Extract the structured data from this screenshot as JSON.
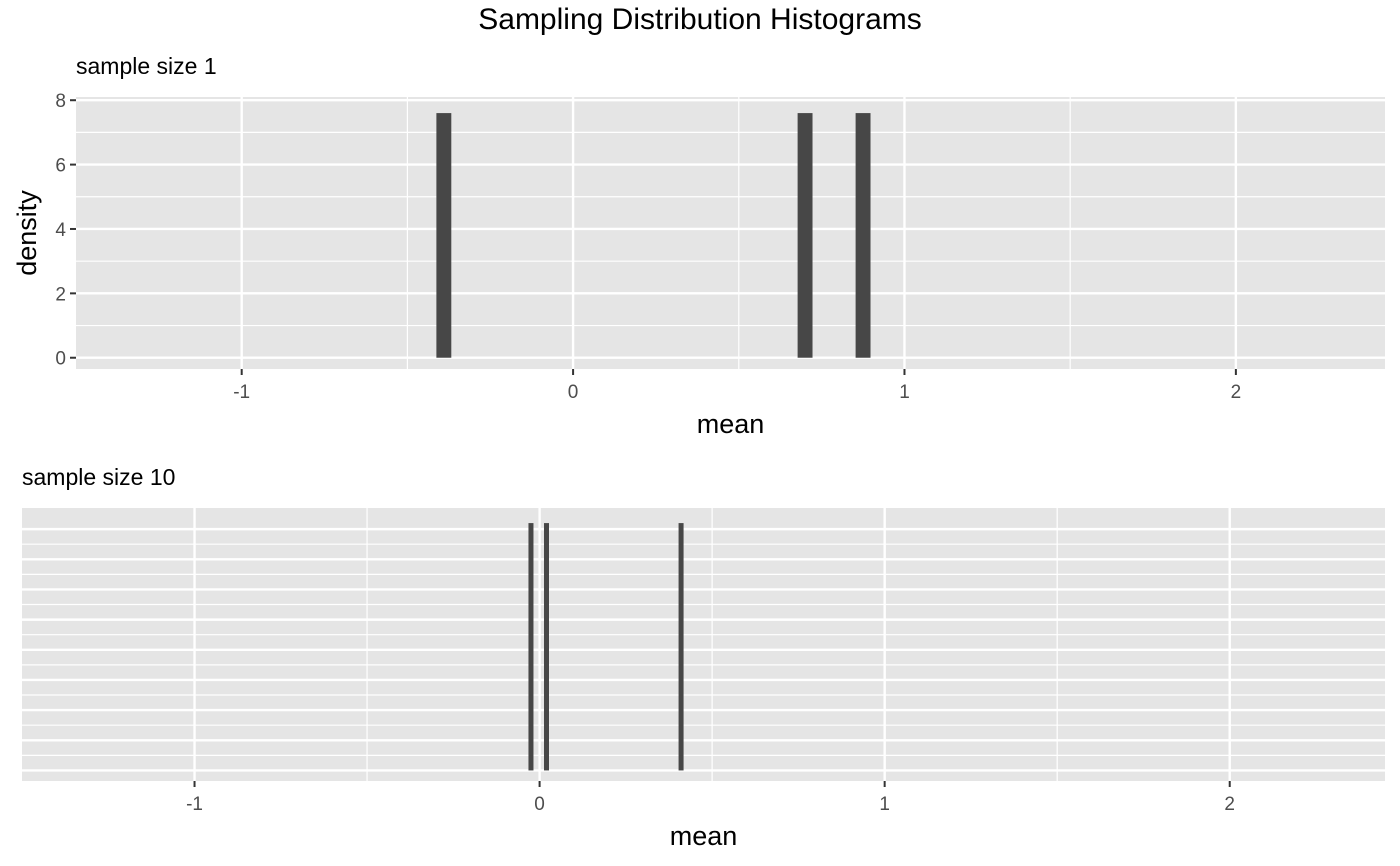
{
  "title": "Sampling Distribution Histograms",
  "chart_data": [
    {
      "type": "bar",
      "title": "sample size 1",
      "xlabel": "mean",
      "ylabel": "density",
      "xlim": [
        -1.5,
        2.45
      ],
      "ylim": [
        -0.35,
        8.1
      ],
      "x_ticks": [
        -1,
        0,
        1,
        2
      ],
      "y_ticks": [
        0,
        2,
        4,
        6,
        8
      ],
      "grid": true,
      "bar_width": 0.045,
      "bars": [
        {
          "x": -0.39,
          "density": 7.6
        },
        {
          "x": 0.7,
          "density": 7.6
        },
        {
          "x": 0.875,
          "density": 7.6
        }
      ],
      "bar_color": "#474747",
      "panel_bg": "#e5e5e5"
    },
    {
      "type": "bar",
      "title": "sample size 10",
      "xlabel": "mean",
      "ylabel": "",
      "xlim": [
        -1.5,
        2.45
      ],
      "ylim": [
        -0.35,
        8.7
      ],
      "x_ticks": [
        -1,
        0,
        1,
        2
      ],
      "y_ticks": [],
      "grid": true,
      "bar_width": 0.0145,
      "bars": [
        {
          "x": -0.025,
          "density": 8.2
        },
        {
          "x": 0.02,
          "density": 8.2
        },
        {
          "x": 0.41,
          "density": 8.2
        }
      ],
      "bar_color": "#474747",
      "panel_bg": "#e5e5e5"
    }
  ]
}
